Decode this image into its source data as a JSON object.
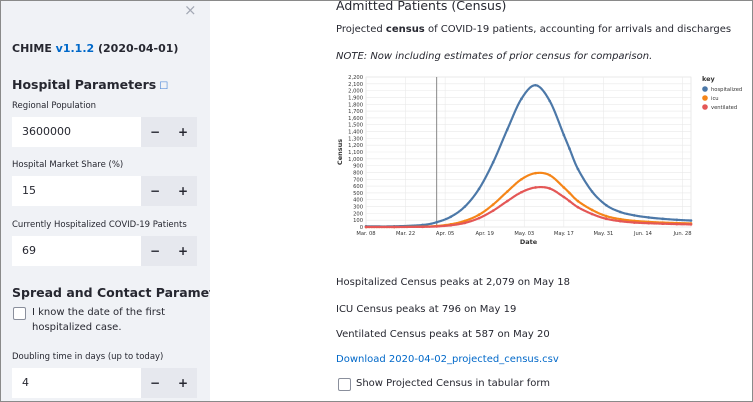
{
  "sidebar": {
    "close_glyph": "×",
    "app_name": "CHIME ",
    "version": "v1.1.2",
    "date": " (2020-04-01)",
    "hospital_header": "Hospital Parameters",
    "info_glyph": "☐",
    "regional_population_label": "Regional Population",
    "regional_population_value": "3600000",
    "market_share_label": "Hospital Market Share (%)",
    "market_share_value": "15",
    "currently_hosp_label": "Currently Hospitalized COVID-19 Patients",
    "currently_hosp_value": "69",
    "spread_header": "Spread and Contact Parameters",
    "date_checkbox_label_1": "I know the date of the first",
    "date_checkbox_label_2": "hospitalized case.",
    "doubling_label": "Doubling time in days (up to today)",
    "doubling_value": "4",
    "minus": "−",
    "plus": "+"
  },
  "main": {
    "title": "Admitted Patients (Census)",
    "desc_pre": "Projected ",
    "desc_bold": "census",
    "desc_post": " of COVID-19 patients, accounting for arrivals and discharges",
    "note": "NOTE: Now including estimates of prior census for comparison.",
    "hosp_peak": "Hospitalized Census peaks at 2,079 on May 18",
    "icu_peak": "ICU Census peaks at 796 on May 19",
    "vent_peak": "Ventilated Census peaks at 587 on May 20",
    "download_link": "Download 2020-04-02_projected_census.csv",
    "tabular_label": "Show Projected Census in tabular form"
  },
  "chart_data": {
    "type": "line",
    "xlabel": "Date",
    "ylabel": "Census",
    "x_ticks": [
      "Mar. 08",
      "Mar. 22",
      "Apr. 05",
      "Apr. 19",
      "May. 03",
      "May. 17",
      "May. 31",
      "Jun. 14",
      "Jun. 28"
    ],
    "y_ticks": [
      "0",
      "100",
      "200",
      "300",
      "400",
      "500",
      "600",
      "700",
      "800",
      "900",
      "1,000",
      "1,100",
      "1,200",
      "1,300",
      "1,400",
      "1,500",
      "1,600",
      "1,700",
      "1,800",
      "1,900",
      "2,000",
      "2,100",
      "2,200"
    ],
    "ylim": [
      0,
      2200
    ],
    "today_line": "Apr. 02",
    "legend_title": "key",
    "legend_position": "top-right",
    "series": [
      {
        "name": "hospitalized",
        "color": "#4c78a8",
        "peak": 2079,
        "peak_date": "May 18"
      },
      {
        "name": "icu",
        "color": "#f58518",
        "peak": 796,
        "peak_date": "May 19"
      },
      {
        "name": "ventilated",
        "color": "#e45756",
        "peak": 587,
        "peak_date": "May 20"
      }
    ],
    "x_sample_days": [
      0,
      10,
      20,
      25,
      30,
      35,
      40,
      45,
      50,
      55,
      60,
      65,
      70,
      72,
      75,
      80,
      85,
      90,
      95,
      100,
      105,
      110,
      115
    ],
    "hospitalized": [
      10,
      10,
      30,
      70,
      150,
      300,
      560,
      950,
      1430,
      1880,
      2079,
      1850,
      1350,
      1150,
      850,
      520,
      320,
      220,
      170,
      140,
      120,
      105,
      95
    ],
    "icu": [
      0,
      0,
      5,
      15,
      40,
      90,
      180,
      330,
      520,
      700,
      790,
      760,
      580,
      500,
      380,
      250,
      160,
      115,
      90,
      75,
      65,
      58,
      52
    ],
    "ventilated": [
      0,
      0,
      2,
      8,
      25,
      60,
      130,
      240,
      380,
      510,
      580,
      565,
      440,
      380,
      290,
      190,
      120,
      85,
      65,
      55,
      48,
      42,
      38
    ]
  }
}
